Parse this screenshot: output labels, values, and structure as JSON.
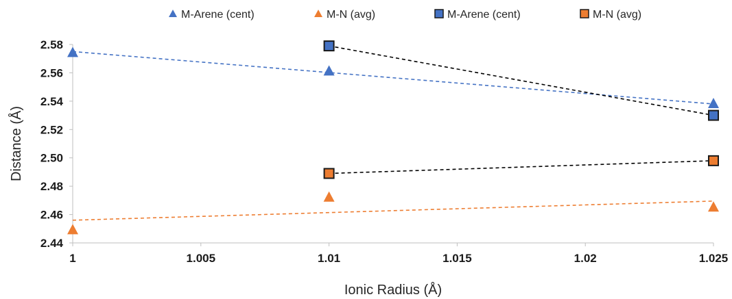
{
  "chart_data": {
    "type": "scatter",
    "title": "",
    "xlabel": "Ionic Radius (Å)",
    "ylabel": "Distance (Å)",
    "xlim": [
      1,
      1.025
    ],
    "ylim": [
      2.44,
      2.58
    ],
    "x_ticks": [
      1,
      1.005,
      1.01,
      1.015,
      1.02,
      1.025
    ],
    "x_tick_labels": [
      "1",
      "1.005",
      "1.01",
      "1.015",
      "1.02",
      "1.025"
    ],
    "y_ticks": [
      2.44,
      2.46,
      2.48,
      2.5,
      2.52,
      2.54,
      2.56,
      2.58
    ],
    "y_tick_labels": [
      "2.44",
      "2.46",
      "2.48",
      "2.50",
      "2.52",
      "2.54",
      "2.56",
      "2.58"
    ],
    "grid": false,
    "legend_position": "top",
    "series": [
      {
        "name": "M-Arene (cent)",
        "marker": "triangle",
        "color": "#4472C4",
        "x": [
          1,
          1.01,
          1.025
        ],
        "y": [
          2.574,
          2.561,
          2.538
        ],
        "trendline": {
          "style": "dashed",
          "color": "#4472C4",
          "x": [
            1,
            1.025
          ],
          "y": [
            2.575,
            2.538
          ]
        }
      },
      {
        "name": "M-N (avg)",
        "marker": "triangle",
        "color": "#ED7D31",
        "x": [
          1,
          1.01,
          1.025
        ],
        "y": [
          2.449,
          2.472,
          2.465
        ],
        "trendline": {
          "style": "dashed",
          "color": "#ED7D31",
          "x": [
            1,
            1.025
          ],
          "y": [
            2.456,
            2.4695
          ]
        }
      },
      {
        "name": "M-Arene (cent)",
        "marker": "square",
        "color": "#4472C4",
        "edge_color": "#1a1a1a",
        "x": [
          1.01,
          1.025
        ],
        "y": [
          2.579,
          2.53
        ],
        "connector": {
          "style": "dashed",
          "color": "#000000"
        }
      },
      {
        "name": "M-N (avg)",
        "marker": "square",
        "color": "#ED7D31",
        "edge_color": "#1a1a1a",
        "x": [
          1.01,
          1.025
        ],
        "y": [
          2.489,
          2.498
        ],
        "connector": {
          "style": "dashed",
          "color": "#000000"
        }
      }
    ]
  }
}
